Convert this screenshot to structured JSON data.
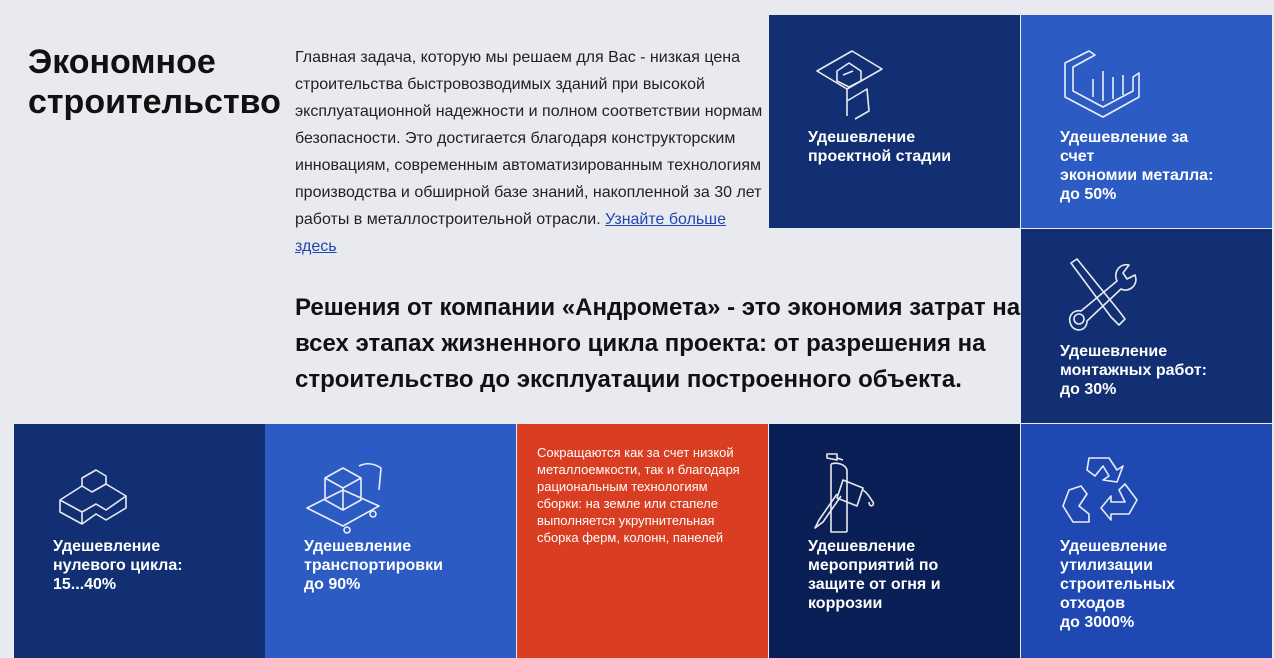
{
  "heading": "Экономное строительство",
  "intro": {
    "text": "Главная задача, которую мы решаем для Вас - низкая цена строительства быстровозводимых зданий при высокой эксплуатационной надежности и полном соответствии нормам безопасности. Это достигается благодаря конструкторским инновациям, современным автоматизированным технологиям производства и обширной базе знаний, накопленной за 30 лет работы в металлостроительной отрасли. ",
    "link": "Узнайте больше здесь"
  },
  "lead": "Решения от компании «Андромета» - это экономия затрат на всех этапах жизненного цикла проекта: от разрешения на строительство до эксплуатации построенного объекта.",
  "colors": {
    "navy": "#112f72",
    "blue": "#2c5bc3",
    "red": "#d93d22",
    "deep_navy": "#0b1f57",
    "royal": "#1f48b3"
  },
  "tiles": [
    {
      "icon": "blueprint-house-icon",
      "label": "Удешевление\nпроектной стадии"
    },
    {
      "icon": "steel-profile-icon",
      "label": "Удешевление за\nсчет\nэкономии металла:\nдо 50%"
    },
    {
      "icon": "wrench-screwdriver-icon",
      "label": "Удешевление\nмонтажных работ:\nдо 30%"
    },
    {
      "icon": "foundation-blocks-icon",
      "label": "Удешевление\nнулевого цикла:\n15...40%"
    },
    {
      "icon": "house-on-cart-icon",
      "label": "Удешевление\nтранспортировки\nдо 90%"
    },
    {
      "note": "Сокращаются как за счет низкой металлоемкости, так и благодаря рациональным технологиям сборки: на земле или стапеле выполняется укрупнительная сборка ферм, колонн, панелей"
    },
    {
      "icon": "extinguisher-brush-icon",
      "label": "Удешевление\nмероприятий по\nзащите от огня и\nкоррозии"
    },
    {
      "icon": "recycle-icon",
      "label": "Удешевление\nутилизации\nстроительных\nотходов\nдо 3000%"
    }
  ]
}
